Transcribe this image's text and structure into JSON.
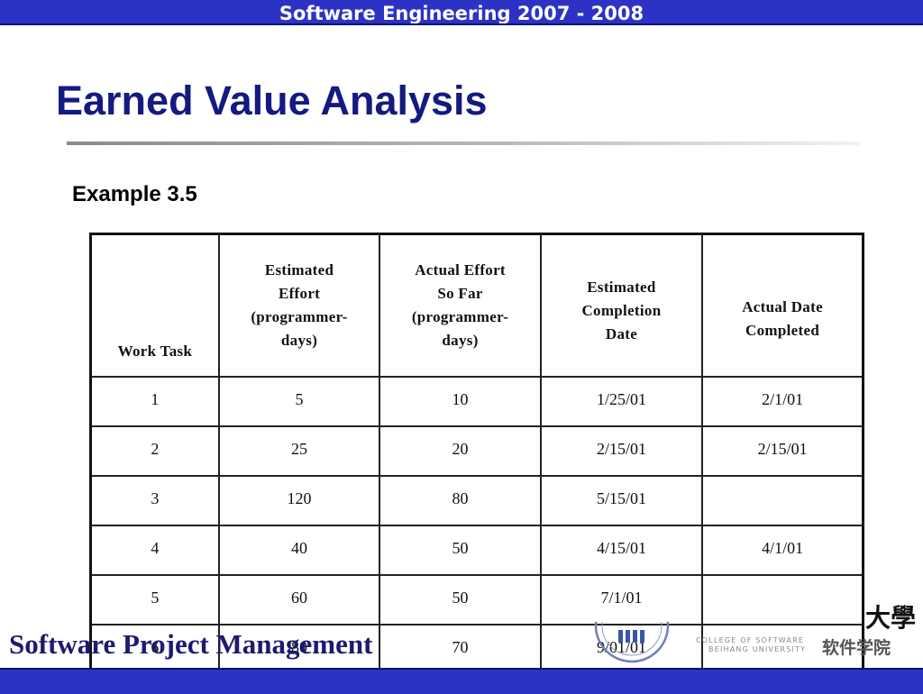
{
  "header": {
    "title": "Software Engineering 2007 - 2008"
  },
  "slide": {
    "title": "Earned Value Analysis",
    "subtitle": "Example 3.5"
  },
  "table": {
    "headers": [
      [
        "Work Task"
      ],
      [
        "Estimated",
        "Effort",
        "(programmer-",
        "days)"
      ],
      [
        "Actual Effort",
        "So Far",
        "(programmer-",
        "days)"
      ],
      [
        "Estimated",
        "Completion",
        "Date"
      ],
      [
        "Actual Date",
        "Completed"
      ]
    ],
    "rows": [
      [
        "1",
        "5",
        "10",
        "1/25/01",
        "2/1/01"
      ],
      [
        "2",
        "25",
        "20",
        "2/15/01",
        "2/15/01"
      ],
      [
        "3",
        "120",
        "80",
        "5/15/01",
        ""
      ],
      [
        "4",
        "40",
        "50",
        "4/15/01",
        "4/1/01"
      ],
      [
        "5",
        "60",
        "50",
        "7/1/01",
        ""
      ],
      [
        "6",
        "80",
        "70",
        "9/01/01",
        ""
      ]
    ]
  },
  "footer": {
    "title": "Software Project Management",
    "college_line1": "COLLEGE OF SOFTWARE",
    "college_line2": "BEIHANG UNIVERSITY",
    "college_cn": "软件学院",
    "univ_glyph": "大學"
  },
  "colors": {
    "bar": "#2c33c4",
    "title": "#141a80",
    "footer_title": "#1b1b70"
  }
}
